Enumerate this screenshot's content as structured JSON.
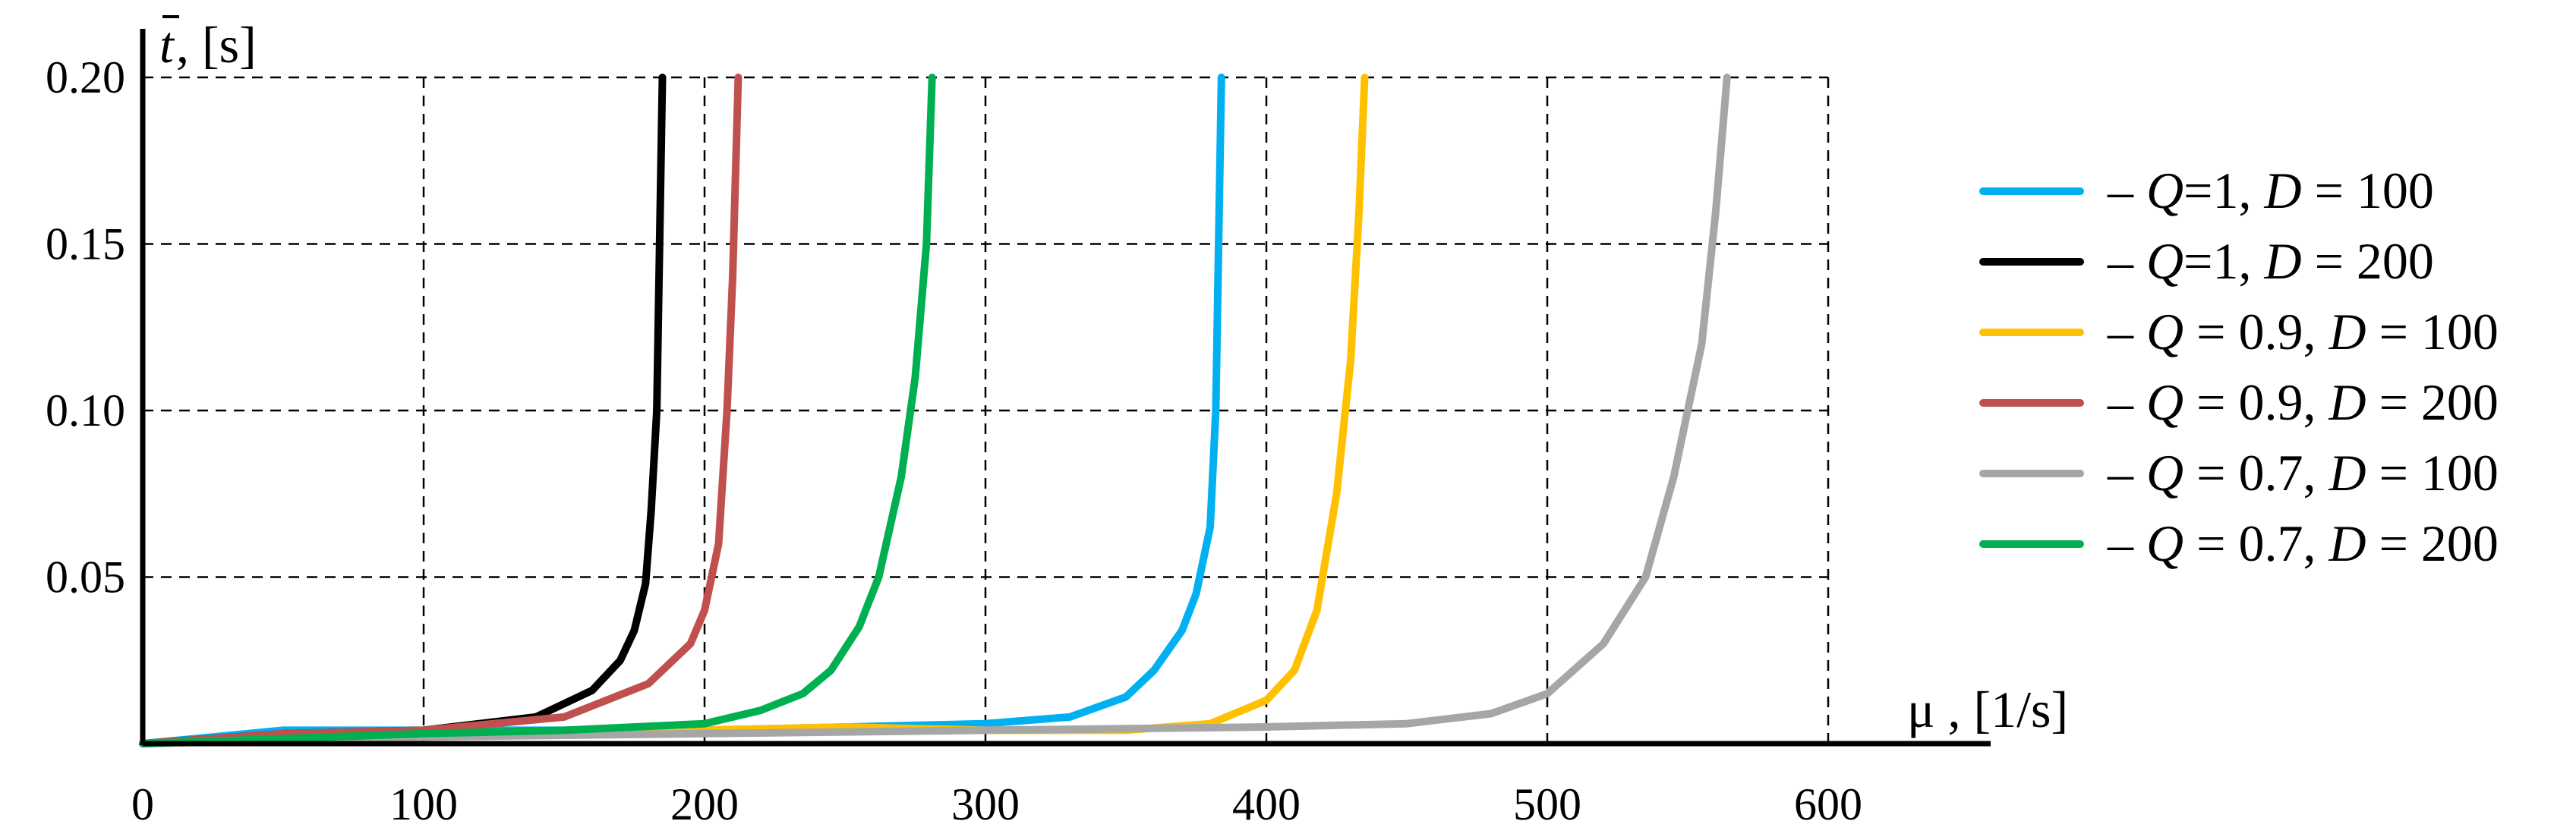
{
  "chart_data": {
    "type": "line",
    "xlabel": "μ , [1/s]",
    "ylabel": "t, [s]",
    "ylabel_overline_symbol": "t",
    "ylabel_units": ", [s]",
    "xlim": [
      0,
      650
    ],
    "ylim": [
      0,
      0.2
    ],
    "xticks": [
      0,
      100,
      200,
      300,
      400,
      500,
      600
    ],
    "xtick_labels": [
      "0",
      "100",
      "200",
      "300",
      "400",
      "500",
      "600"
    ],
    "yticks": [
      0.05,
      0.1,
      0.15,
      0.2
    ],
    "ytick_labels": [
      "0.05",
      "0.10",
      "0.15",
      "0.20"
    ],
    "grid": true,
    "grid_style": "dashed",
    "legend_position": "right",
    "series": [
      {
        "name": "– Q =1, D = 100",
        "legend": {
          "q_text": "=1, ",
          "d_text": " = 100"
        },
        "color": "#00B0F0",
        "x": [
          0,
          50,
          100,
          200,
          300,
          330,
          350,
          360,
          370,
          375,
          380,
          382,
          383,
          384
        ],
        "y": [
          0,
          0.004,
          0.004,
          0.004,
          0.006,
          0.008,
          0.014,
          0.022,
          0.034,
          0.045,
          0.065,
          0.1,
          0.15,
          0.2
        ]
      },
      {
        "name": "– Q =1, D = 200",
        "legend": {
          "q_text": "=1, ",
          "d_text": " = 200"
        },
        "color": "#000000",
        "x": [
          0,
          50,
          100,
          140,
          160,
          170,
          175,
          179,
          181,
          183,
          184,
          185
        ],
        "y": [
          0,
          0.003,
          0.004,
          0.008,
          0.016,
          0.025,
          0.034,
          0.048,
          0.07,
          0.1,
          0.15,
          0.2
        ]
      },
      {
        "name": "– Q = 0.9, D = 100",
        "legend": {
          "q_text": " = 0.9, ",
          "d_text": " = 100"
        },
        "color": "#FFC000",
        "x": [
          0,
          100,
          200,
          250,
          300,
          350,
          380,
          400,
          410,
          418,
          425,
          430,
          433,
          435
        ],
        "y": [
          0,
          0.003,
          0.004,
          0.005,
          0.004,
          0.004,
          0.006,
          0.013,
          0.022,
          0.04,
          0.075,
          0.115,
          0.16,
          0.2
        ]
      },
      {
        "name": "– Q = 0.9, D = 200",
        "legend": {
          "q_text": " = 0.9, ",
          "d_text": " = 200"
        },
        "color": "#C0504D",
        "x": [
          0,
          50,
          100,
          150,
          180,
          195,
          200,
          205,
          208,
          210,
          211,
          212
        ],
        "y": [
          0,
          0.003,
          0.004,
          0.008,
          0.018,
          0.03,
          0.04,
          0.06,
          0.1,
          0.14,
          0.17,
          0.2
        ]
      },
      {
        "name": "– Q = 0.7, D = 100",
        "legend": {
          "q_text": " = 0.7, ",
          "d_text": " = 100"
        },
        "color": "#A6A6A6",
        "x": [
          0,
          100,
          200,
          300,
          400,
          450,
          480,
          500,
          520,
          535,
          545,
          555,
          560,
          564
        ],
        "y": [
          0,
          0.002,
          0.003,
          0.004,
          0.005,
          0.006,
          0.009,
          0.015,
          0.03,
          0.05,
          0.08,
          0.12,
          0.16,
          0.2
        ]
      },
      {
        "name": "– Q = 0.7, D = 200",
        "legend": {
          "q_text": " = 0.7, ",
          "d_text": " = 200"
        },
        "color": "#00B050",
        "x": [
          0,
          100,
          150,
          200,
          220,
          235,
          245,
          255,
          262,
          270,
          275,
          279,
          281
        ],
        "y": [
          0,
          0.003,
          0.004,
          0.006,
          0.01,
          0.015,
          0.022,
          0.035,
          0.05,
          0.08,
          0.11,
          0.15,
          0.2
        ]
      }
    ]
  }
}
